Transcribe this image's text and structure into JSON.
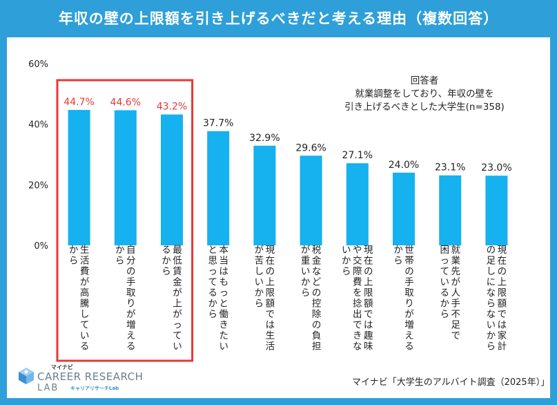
{
  "header": {
    "title": "年収の壁の上限額を引き上げるべきだと考える理由（複数回答）"
  },
  "legend": {
    "line1": "回答者",
    "line2": "就業調整をしており、年収の壁を",
    "line3": "引き上げるべきとした大学生(n=358)"
  },
  "source": "マイナビ「大学生のアルバイト調査（2025年）」",
  "logo": {
    "brand": "マイナビ",
    "line1": "CAREER RESEARCH",
    "line2": "LAB",
    "sub": "キャリアリサーチLab"
  },
  "colors": {
    "frame": "#2e9fd8",
    "bar": "#16b1ef",
    "highlight": "#e53935"
  },
  "chart_data": {
    "type": "bar",
    "title": "年収の壁の上限額を引き上げるべきだと考える理由（複数回答）",
    "ylim": [
      0,
      60
    ],
    "yticks": [
      "0%",
      "20%",
      "40%",
      "60%"
    ],
    "categories": [
      "生活費が高騰しているから",
      "自分の手取りが増えるから",
      "最低賃金が上がっているから",
      "本当はもっと働きたいと思ってるから",
      "現在の上限額では生活が苦しいから",
      "税金などの控除の負担が重いから",
      "現在の上限額では趣味や交際費を捻出できないから",
      "世帯の手取りが増えるから",
      "就業先が人手不足で困っているから",
      "現在の上限額では家計の足しにならないから"
    ],
    "columns": [
      [
        "生活費が高騰している",
        "から"
      ],
      [
        "自分の手取りが増える",
        "から"
      ],
      [
        "最低賃金が上がってい",
        "るから"
      ],
      [
        "本当はもっと働きたい",
        "と思ってるから"
      ],
      [
        "現在の上限額では生活",
        "が苦しいから"
      ],
      [
        "税金などの控除の負担",
        "が重いから"
      ],
      [
        "現在の上限額では趣味",
        "や交際費を捻出できな",
        "いから"
      ],
      [
        "世帯の手取りが増える",
        "から"
      ],
      [
        "就業先が人手不足で",
        "困っているから"
      ],
      [
        "現在の上限額では家計",
        "の足しにならないから"
      ]
    ],
    "values": [
      44.7,
      44.6,
      43.2,
      37.7,
      32.9,
      29.6,
      27.1,
      24.0,
      23.1,
      23.0
    ],
    "value_labels": [
      "44.7%",
      "44.6%",
      "43.2%",
      "37.7%",
      "32.9%",
      "29.6%",
      "27.1%",
      "24.0%",
      "23.1%",
      "23.0%"
    ],
    "highlighted": [
      0,
      1,
      2
    ]
  }
}
